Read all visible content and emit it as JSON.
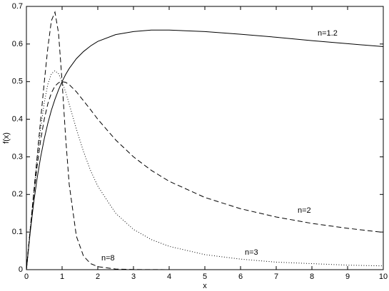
{
  "chart_data": {
    "type": "line",
    "xlabel": "x",
    "ylabel": "f(x)",
    "x": [
      0,
      0.1,
      0.2,
      0.3,
      0.4,
      0.5,
      0.6,
      0.7,
      0.8,
      0.9,
      1,
      1.1,
      1.2,
      1.4,
      1.6,
      1.8,
      2,
      2.5,
      3,
      3.5,
      4,
      5,
      6,
      7,
      8,
      9,
      10
    ],
    "series": [
      {
        "name": "n=1.2",
        "color": "#000000",
        "dash": "solid",
        "values": [
          0,
          0.094,
          0.175,
          0.243,
          0.3,
          0.348,
          0.389,
          0.424,
          0.453,
          0.478,
          0.5,
          0.519,
          0.535,
          0.561,
          0.58,
          0.595,
          0.607,
          0.625,
          0.633,
          0.637,
          0.637,
          0.633,
          0.626,
          0.618,
          0.609,
          0.601,
          0.593
        ]
      },
      {
        "name": "n=2",
        "color": "#000000",
        "dash": "dashed",
        "values": [
          0,
          0.099,
          0.192,
          0.275,
          0.345,
          0.4,
          0.441,
          0.47,
          0.488,
          0.497,
          0.5,
          0.498,
          0.492,
          0.473,
          0.449,
          0.425,
          0.4,
          0.345,
          0.3,
          0.264,
          0.235,
          0.192,
          0.162,
          0.14,
          0.123,
          0.11,
          0.099
        ]
      },
      {
        "name": "n=3",
        "color": "#000000",
        "dash": "dotted",
        "values": [
          0,
          0.1,
          0.198,
          0.292,
          0.376,
          0.444,
          0.493,
          0.521,
          0.529,
          0.521,
          0.5,
          0.472,
          0.44,
          0.374,
          0.314,
          0.263,
          0.222,
          0.15,
          0.107,
          0.08,
          0.062,
          0.04,
          0.028,
          0.02,
          0.016,
          0.012,
          0.01
        ]
      },
      {
        "name": "n=8",
        "color": "#000000",
        "dash": "dashed",
        "values": [
          0,
          0.1,
          0.2,
          0.3,
          0.4,
          0.498,
          0.59,
          0.662,
          0.685,
          0.629,
          0.5,
          0.35,
          0.226,
          0.089,
          0.036,
          0.016,
          0.008,
          0.0016,
          0.0005,
          0.0002,
          0.0001,
          0,
          0,
          0,
          0,
          0,
          0
        ]
      }
    ],
    "xlim": [
      0,
      10
    ],
    "xticks": [
      0,
      1,
      2,
      3,
      4,
      5,
      6,
      7,
      8,
      9,
      10
    ],
    "ylim": [
      0,
      0.7
    ],
    "yticks": [
      0,
      0.1,
      0.2,
      0.3,
      0.4,
      0.5,
      0.6,
      0.7
    ],
    "grid": false
  }
}
